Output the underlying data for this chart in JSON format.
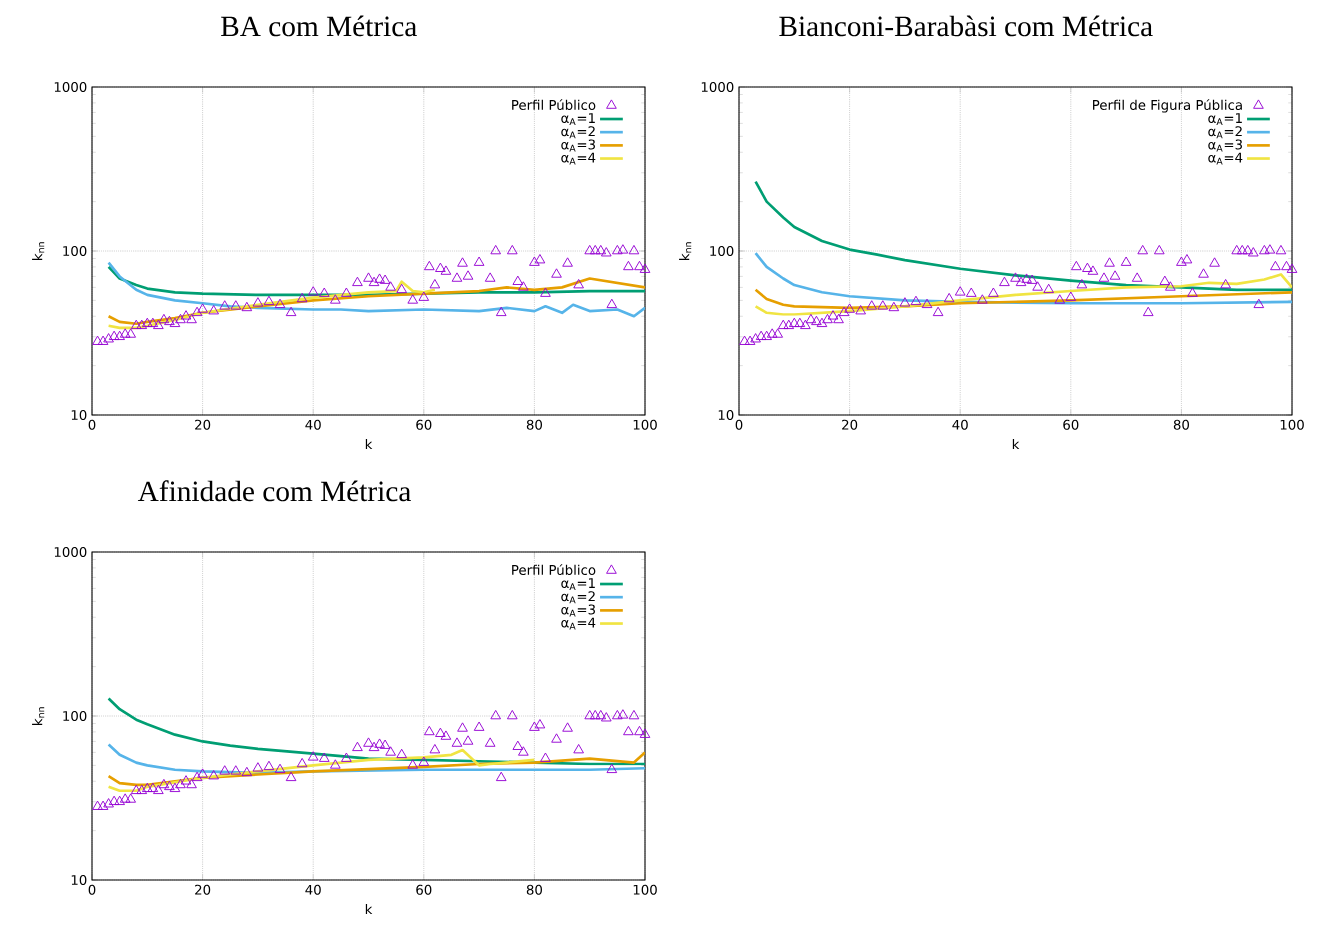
{
  "chart_data": [
    {
      "type": "line",
      "title": "BA com Métrica",
      "xlabel": "k",
      "ylabel": "k$_{nn}$",
      "xlim": [
        0,
        100
      ],
      "xticks": [
        0,
        20,
        40,
        60,
        80,
        100
      ],
      "ylim": [
        10,
        1000
      ],
      "yticks": [
        10,
        100,
        1000
      ],
      "log": "y",
      "grid": true,
      "legend": "top right",
      "series": [
        {
          "name": "Perfil Público",
          "type": "scatter",
          "marker": "triangle",
          "color": "#9400d3",
          "x": [
            1,
            2,
            3,
            4,
            5,
            6,
            7,
            8,
            9,
            10,
            11,
            12,
            13,
            14,
            15,
            16,
            17,
            18,
            19,
            20,
            22,
            24,
            26,
            28,
            30,
            32,
            34,
            36,
            38,
            40,
            42,
            44,
            46,
            48,
            50,
            51,
            52,
            53,
            54,
            56,
            58,
            60,
            61,
            62,
            63,
            64,
            66,
            67,
            68,
            70,
            72,
            73,
            74,
            76,
            77,
            78,
            80,
            81,
            82,
            84,
            86,
            88,
            90,
            91,
            92,
            93,
            94,
            95,
            96,
            97,
            98,
            99,
            100
          ],
          "values": [
            28,
            28,
            29,
            30,
            30,
            31,
            31,
            35,
            35,
            36,
            36,
            35,
            38,
            37,
            36,
            38,
            40,
            38,
            42,
            44,
            43,
            46,
            46,
            45,
            48,
            49,
            47,
            42,
            51,
            56,
            55,
            50,
            55,
            64,
            68,
            64,
            67,
            66,
            60,
            58,
            50,
            52,
            80,
            62,
            78,
            75,
            68,
            84,
            70,
            85,
            68,
            100,
            42,
            100,
            65,
            60,
            85,
            88,
            55,
            72,
            84,
            62,
            100,
            100,
            100,
            97,
            47,
            100,
            101,
            80,
            100,
            80,
            77
          ]
        },
        {
          "name": "α$_{A}$=1",
          "color": "#009e73",
          "x": [
            3,
            5,
            8,
            10,
            15,
            20,
            30,
            40,
            50,
            60,
            70,
            80,
            90,
            100
          ],
          "values": [
            80,
            68,
            62,
            59,
            56,
            55,
            54,
            54,
            54,
            55,
            56,
            56,
            57,
            57
          ]
        },
        {
          "name": "α$_{A}$=2",
          "color": "#56b4e9",
          "x": [
            3,
            5,
            8,
            10,
            15,
            20,
            25,
            30,
            40,
            45,
            50,
            60,
            70,
            75,
            80,
            82,
            85,
            87,
            90,
            95,
            98,
            100
          ],
          "values": [
            85,
            70,
            58,
            54,
            50,
            48,
            46,
            45,
            44,
            44,
            43,
            44,
            43,
            45,
            43,
            46,
            42,
            47,
            43,
            44,
            40,
            45
          ]
        },
        {
          "name": "α$_{A}$=3",
          "color": "#e69f00",
          "x": [
            3,
            5,
            8,
            10,
            15,
            20,
            30,
            40,
            50,
            60,
            70,
            75,
            80,
            85,
            90,
            100
          ],
          "values": [
            40,
            37,
            36,
            37,
            39,
            42,
            46,
            50,
            53,
            55,
            57,
            60,
            58,
            60,
            68,
            60
          ]
        },
        {
          "name": "α$_{A}$=4",
          "color": "#f0e442",
          "x": [
            3,
            5,
            8,
            10,
            15,
            20,
            30,
            40,
            50,
            55,
            56,
            58,
            60,
            62
          ],
          "values": [
            35,
            34,
            34,
            35,
            38,
            42,
            47,
            52,
            56,
            57,
            65,
            57,
            56,
            58
          ]
        }
      ]
    },
    {
      "type": "line",
      "title": "Bianconi-Barabàsi com Métrica",
      "xlabel": "k",
      "ylabel": "k$_{nn}$",
      "xlim": [
        0,
        100
      ],
      "xticks": [
        0,
        20,
        40,
        60,
        80,
        100
      ],
      "ylim": [
        10,
        1000
      ],
      "yticks": [
        10,
        100,
        1000
      ],
      "log": "y",
      "grid": true,
      "legend": "top right",
      "series": [
        {
          "name": "Perfil de Figura Pública",
          "type": "scatter",
          "marker": "triangle",
          "color": "#9400d3",
          "x": [
            1,
            2,
            3,
            4,
            5,
            6,
            7,
            8,
            9,
            10,
            11,
            12,
            13,
            14,
            15,
            16,
            17,
            18,
            19,
            20,
            22,
            24,
            26,
            28,
            30,
            32,
            34,
            36,
            38,
            40,
            42,
            44,
            46,
            48,
            50,
            51,
            52,
            53,
            54,
            56,
            58,
            60,
            61,
            62,
            63,
            64,
            66,
            67,
            68,
            70,
            72,
            73,
            74,
            76,
            77,
            78,
            80,
            81,
            82,
            84,
            86,
            88,
            90,
            91,
            92,
            93,
            94,
            95,
            96,
            97,
            98,
            99,
            100
          ],
          "values": [
            28,
            28,
            29,
            30,
            30,
            31,
            31,
            35,
            35,
            36,
            36,
            35,
            38,
            37,
            36,
            38,
            40,
            38,
            42,
            44,
            43,
            46,
            46,
            45,
            48,
            49,
            47,
            42,
            51,
            56,
            55,
            50,
            55,
            64,
            68,
            64,
            67,
            66,
            60,
            58,
            50,
            52,
            80,
            62,
            78,
            75,
            68,
            84,
            70,
            85,
            68,
            100,
            42,
            100,
            65,
            60,
            85,
            88,
            55,
            72,
            84,
            62,
            100,
            100,
            100,
            97,
            47,
            100,
            101,
            80,
            100,
            80,
            77
          ]
        },
        {
          "name": "α$_{A}$=1",
          "color": "#009e73",
          "x": [
            3,
            5,
            8,
            10,
            15,
            20,
            25,
            30,
            40,
            50,
            60,
            70,
            80,
            90,
            100
          ],
          "values": [
            265,
            200,
            160,
            140,
            115,
            102,
            95,
            88,
            78,
            71,
            66,
            62,
            60,
            58,
            58
          ]
        },
        {
          "name": "α$_{A}$=2",
          "color": "#56b4e9",
          "x": [
            3,
            5,
            8,
            10,
            15,
            20,
            30,
            40,
            60,
            80,
            100
          ],
          "values": [
            97,
            80,
            68,
            62,
            56,
            53,
            50,
            49,
            48,
            48,
            49
          ]
        },
        {
          "name": "α$_{A}$=3",
          "color": "#e69f00",
          "x": [
            3,
            5,
            8,
            10,
            20,
            30,
            40,
            60,
            80,
            100
          ],
          "values": [
            58,
            51,
            47,
            46,
            45,
            46,
            48,
            50,
            53,
            56
          ]
        },
        {
          "name": "α$_{A}$=4",
          "color": "#f0e442",
          "x": [
            3,
            5,
            8,
            10,
            20,
            30,
            40,
            50,
            60,
            70,
            80,
            85,
            90,
            95,
            98,
            100
          ],
          "values": [
            46,
            42,
            41,
            41,
            43,
            46,
            50,
            54,
            57,
            60,
            61,
            64,
            63,
            67,
            72,
            60
          ]
        }
      ]
    },
    {
      "type": "line",
      "title": "Afinidade com Métrica",
      "xlabel": "k",
      "ylabel": "k$_{nn}$",
      "xlim": [
        0,
        100
      ],
      "xticks": [
        0,
        20,
        40,
        60,
        80,
        100
      ],
      "ylim": [
        10,
        1000
      ],
      "yticks": [
        10,
        100,
        1000
      ],
      "log": "y",
      "grid": true,
      "legend": "top right",
      "series": [
        {
          "name": "Perfil Público",
          "type": "scatter",
          "marker": "triangle",
          "color": "#9400d3",
          "x": [
            1,
            2,
            3,
            4,
            5,
            6,
            7,
            8,
            9,
            10,
            11,
            12,
            13,
            14,
            15,
            16,
            17,
            18,
            19,
            20,
            22,
            24,
            26,
            28,
            30,
            32,
            34,
            36,
            38,
            40,
            42,
            44,
            46,
            48,
            50,
            51,
            52,
            53,
            54,
            56,
            58,
            60,
            61,
            62,
            63,
            64,
            66,
            67,
            68,
            70,
            72,
            73,
            74,
            76,
            77,
            78,
            80,
            81,
            82,
            84,
            86,
            88,
            90,
            91,
            92,
            93,
            94,
            95,
            96,
            97,
            98,
            99,
            100
          ],
          "values": [
            28,
            28,
            29,
            30,
            30,
            31,
            31,
            35,
            35,
            36,
            36,
            35,
            38,
            37,
            36,
            38,
            40,
            38,
            42,
            44,
            43,
            46,
            46,
            45,
            48,
            49,
            47,
            42,
            51,
            56,
            55,
            50,
            55,
            64,
            68,
            64,
            67,
            66,
            60,
            58,
            50,
            52,
            80,
            62,
            78,
            75,
            68,
            84,
            70,
            85,
            68,
            100,
            42,
            100,
            65,
            60,
            85,
            88,
            55,
            72,
            84,
            62,
            100,
            100,
            100,
            97,
            47,
            100,
            101,
            80,
            100,
            80,
            77
          ]
        },
        {
          "name": "α$_{A}$=1",
          "color": "#009e73",
          "x": [
            3,
            5,
            8,
            10,
            15,
            20,
            25,
            30,
            40,
            45,
            50,
            60,
            70,
            80,
            90,
            100
          ],
          "values": [
            128,
            110,
            95,
            89,
            77,
            70,
            66,
            63,
            59,
            57,
            55,
            54,
            53,
            52,
            51,
            51
          ]
        },
        {
          "name": "α$_{A}$=2",
          "color": "#56b4e9",
          "x": [
            3,
            5,
            8,
            10,
            15,
            20,
            30,
            40,
            60,
            80,
            90,
            100
          ],
          "values": [
            67,
            58,
            52,
            50,
            47,
            46,
            45,
            46,
            47,
            47,
            47,
            48
          ]
        },
        {
          "name": "α$_{A}$=3",
          "color": "#e69f00",
          "x": [
            3,
            5,
            8,
            10,
            20,
            30,
            40,
            60,
            70,
            80,
            90,
            98,
            100
          ],
          "values": [
            43,
            39,
            38,
            38,
            42,
            44,
            46,
            49,
            51,
            52,
            55,
            52,
            60
          ]
        },
        {
          "name": "α$_{A}$=4",
          "color": "#f0e442",
          "x": [
            3,
            5,
            8,
            10,
            20,
            30,
            40,
            50,
            60,
            65,
            67,
            70,
            72,
            75,
            80
          ],
          "values": [
            37,
            35,
            35,
            37,
            42,
            46,
            50,
            54,
            56,
            58,
            62,
            50,
            51,
            52,
            54
          ]
        }
      ]
    }
  ]
}
